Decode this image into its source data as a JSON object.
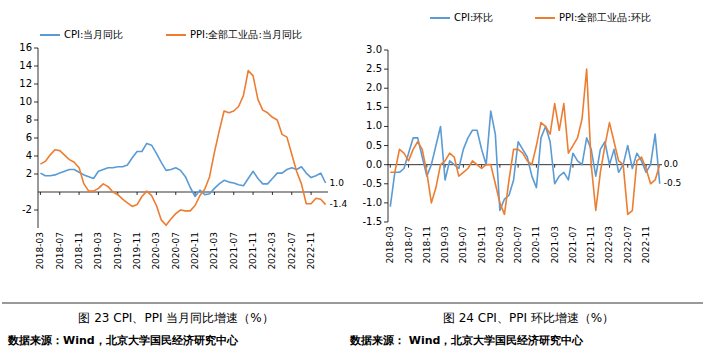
{
  "chart_data": [
    {
      "type": "line",
      "title": "图 23 CPI、PPI 当月同比增速（%）",
      "source": "数据来源：Wind，北京大学国民经济研究中心",
      "categories": [
        "2018-03",
        null,
        null,
        null,
        "2018-07",
        null,
        null,
        null,
        "2018-11",
        null,
        null,
        null,
        "2019-03",
        null,
        null,
        null,
        "2019-07",
        null,
        null,
        null,
        "2019-11",
        null,
        null,
        null,
        "2020-03",
        null,
        null,
        null,
        "2020-07",
        null,
        null,
        null,
        "2020-11",
        null,
        null,
        null,
        "2021-03",
        null,
        null,
        null,
        "2021-07",
        null,
        null,
        null,
        "2021-11",
        null,
        null,
        null,
        "2022-03",
        null,
        null,
        null,
        "2022-07",
        null,
        null,
        null,
        "2022-11",
        null,
        null,
        null
      ],
      "series": [
        {
          "name": "CPI:当月同比",
          "color": "#5B9BD5",
          "values": [
            2.1,
            1.8,
            1.8,
            1.9,
            2.1,
            2.3,
            2.5,
            2.5,
            2.2,
            1.9,
            1.7,
            1.5,
            2.3,
            2.5,
            2.7,
            2.7,
            2.8,
            2.8,
            3.0,
            3.8,
            4.5,
            4.5,
            5.4,
            5.2,
            4.3,
            3.3,
            2.4,
            2.5,
            2.7,
            2.4,
            1.7,
            0.5,
            -0.5,
            0.2,
            -0.3,
            -0.2,
            0.4,
            0.9,
            1.3,
            1.1,
            1.0,
            0.8,
            0.7,
            1.5,
            2.3,
            1.5,
            0.9,
            0.9,
            1.5,
            2.1,
            2.1,
            2.5,
            2.7,
            2.5,
            2.8,
            2.1,
            1.6,
            1.8,
            2.1,
            1.0
          ],
          "value_labels": [
            null,
            null,
            null,
            null,
            null,
            null,
            null,
            null,
            null,
            null,
            null,
            null,
            null,
            null,
            null,
            null,
            null,
            null,
            null,
            null,
            null,
            null,
            null,
            null,
            null,
            null,
            null,
            null,
            null,
            null,
            null,
            null,
            null,
            null,
            null,
            null,
            null,
            null,
            null,
            null,
            null,
            null,
            null,
            null,
            null,
            null,
            null,
            null,
            null,
            null,
            null,
            null,
            null,
            null,
            null,
            null,
            null,
            null,
            null,
            "1.0"
          ]
        },
        {
          "name": "PPI:全部工业品:当月同比",
          "color": "#ED7D31",
          "values": [
            3.1,
            3.4,
            4.1,
            4.7,
            4.6,
            4.1,
            3.6,
            3.3,
            2.7,
            0.9,
            0.1,
            0.1,
            0.4,
            0.9,
            0.6,
            0.0,
            -0.3,
            -0.8,
            -1.2,
            -1.6,
            -1.4,
            -0.5,
            0.1,
            -0.4,
            -1.5,
            -3.1,
            -3.7,
            -3.0,
            -2.4,
            -2.0,
            -2.1,
            -2.1,
            -1.5,
            -0.4,
            0.3,
            1.7,
            4.4,
            6.8,
            9.0,
            8.8,
            9.0,
            9.5,
            10.7,
            13.5,
            12.9,
            10.3,
            9.1,
            8.8,
            8.3,
            8.0,
            6.4,
            6.1,
            4.2,
            2.3,
            0.9,
            -1.3,
            -1.3,
            -0.7,
            -0.8,
            -1.4
          ],
          "value_labels": [
            null,
            null,
            null,
            null,
            null,
            null,
            null,
            null,
            null,
            null,
            null,
            null,
            null,
            null,
            null,
            null,
            null,
            null,
            null,
            null,
            null,
            null,
            null,
            null,
            null,
            null,
            null,
            null,
            null,
            null,
            null,
            null,
            null,
            null,
            null,
            null,
            null,
            null,
            null,
            null,
            null,
            null,
            null,
            null,
            null,
            null,
            null,
            null,
            null,
            null,
            null,
            null,
            null,
            null,
            null,
            null,
            null,
            null,
            null,
            "-1.4"
          ]
        }
      ],
      "ylim": [
        -4,
        16
      ],
      "yticks": [
        -2,
        2,
        4,
        6,
        8,
        10,
        12,
        14,
        16
      ],
      "grid": false,
      "legend": "top"
    },
    {
      "type": "line",
      "title": "图 24 CPI、PPI 环比增速（%）",
      "source": "数据来源：  Wind，北京大学国民经济研究中心",
      "categories": [
        "2018-03",
        null,
        null,
        null,
        "2018-07",
        null,
        null,
        null,
        "2018-11",
        null,
        null,
        null,
        "2019-03",
        null,
        null,
        null,
        "2019-07",
        null,
        null,
        null,
        "2019-11",
        null,
        null,
        null,
        "2020-03",
        null,
        null,
        null,
        "2020-07",
        null,
        null,
        null,
        "2020-11",
        null,
        null,
        null,
        "2021-03",
        null,
        null,
        null,
        "2021-07",
        null,
        null,
        null,
        "2021-11",
        null,
        null,
        null,
        "2022-03",
        null,
        null,
        null,
        "2022-07",
        null,
        null,
        null,
        "2022-11",
        null,
        null,
        null
      ],
      "series": [
        {
          "name": "CPI:环比",
          "color": "#5B9BD5",
          "values": [
            -1.1,
            -0.2,
            -0.2,
            -0.1,
            0.3,
            0.7,
            0.7,
            0.2,
            -0.3,
            0.0,
            0.5,
            1.0,
            -0.4,
            0.1,
            0.0,
            -0.1,
            0.4,
            0.7,
            0.9,
            0.9,
            0.4,
            0.0,
            1.4,
            0.8,
            -1.2,
            -0.9,
            -0.8,
            -0.4,
            0.6,
            0.4,
            0.2,
            -0.3,
            -0.6,
            0.7,
            1.0,
            0.6,
            -0.5,
            -0.3,
            -0.2,
            -0.4,
            0.3,
            0.1,
            0.0,
            0.7,
            0.4,
            -0.3,
            0.4,
            0.6,
            0.0,
            0.4,
            -0.2,
            0.0,
            0.5,
            -0.1,
            0.3,
            0.1,
            -0.2,
            0.0,
            0.8,
            -0.5
          ],
          "value_labels": [
            null,
            null,
            null,
            null,
            null,
            null,
            null,
            null,
            null,
            null,
            null,
            null,
            null,
            null,
            null,
            null,
            null,
            null,
            null,
            null,
            null,
            null,
            null,
            null,
            null,
            null,
            null,
            null,
            null,
            null,
            null,
            null,
            null,
            null,
            null,
            null,
            null,
            null,
            null,
            null,
            null,
            null,
            null,
            null,
            null,
            null,
            null,
            null,
            null,
            null,
            null,
            null,
            null,
            null,
            null,
            null,
            null,
            null,
            null,
            "-0.5"
          ]
        },
        {
          "name": "PPI:全部工业品:环比",
          "color": "#ED7D31",
          "values": [
            -0.2,
            -0.2,
            0.4,
            0.3,
            0.1,
            0.4,
            0.6,
            0.4,
            -0.2,
            -1.0,
            -0.6,
            0.0,
            0.1,
            0.3,
            0.2,
            -0.3,
            -0.2,
            -0.1,
            0.1,
            0.0,
            -0.1,
            0.0,
            0.0,
            -0.5,
            -1.0,
            -1.3,
            -0.4,
            0.4,
            0.4,
            0.3,
            0.1,
            0.0,
            0.5,
            1.1,
            1.0,
            0.8,
            1.6,
            0.9,
            1.6,
            0.3,
            0.5,
            0.7,
            1.2,
            2.5,
            0.0,
            -1.2,
            -0.2,
            0.5,
            1.1,
            0.6,
            0.1,
            0.0,
            -1.3,
            -1.2,
            0.1,
            0.2,
            -0.1,
            -0.5,
            -0.4,
            0.0
          ],
          "value_labels": [
            null,
            null,
            null,
            null,
            null,
            null,
            null,
            null,
            null,
            null,
            null,
            null,
            null,
            null,
            null,
            null,
            null,
            null,
            null,
            null,
            null,
            null,
            null,
            null,
            null,
            null,
            null,
            null,
            null,
            null,
            null,
            null,
            null,
            null,
            null,
            null,
            null,
            null,
            null,
            null,
            null,
            null,
            null,
            null,
            null,
            null,
            null,
            null,
            null,
            null,
            null,
            null,
            null,
            null,
            null,
            null,
            null,
            null,
            null,
            "0.0"
          ]
        }
      ],
      "ylim": [
        -1.5,
        3
      ],
      "yticks": [
        -1.5,
        {
          "value": -1,
          "label": "-1.0"
        },
        -0.5,
        {
          "value": 0,
          "label": "0.0"
        },
        0.5,
        {
          "value": 1,
          "label": "1.0"
        },
        1.5,
        {
          "value": 2,
          "label": "2.0"
        },
        2.5,
        {
          "value": 3,
          "label": "3.0"
        }
      ],
      "grid": false,
      "legend": "top"
    }
  ]
}
